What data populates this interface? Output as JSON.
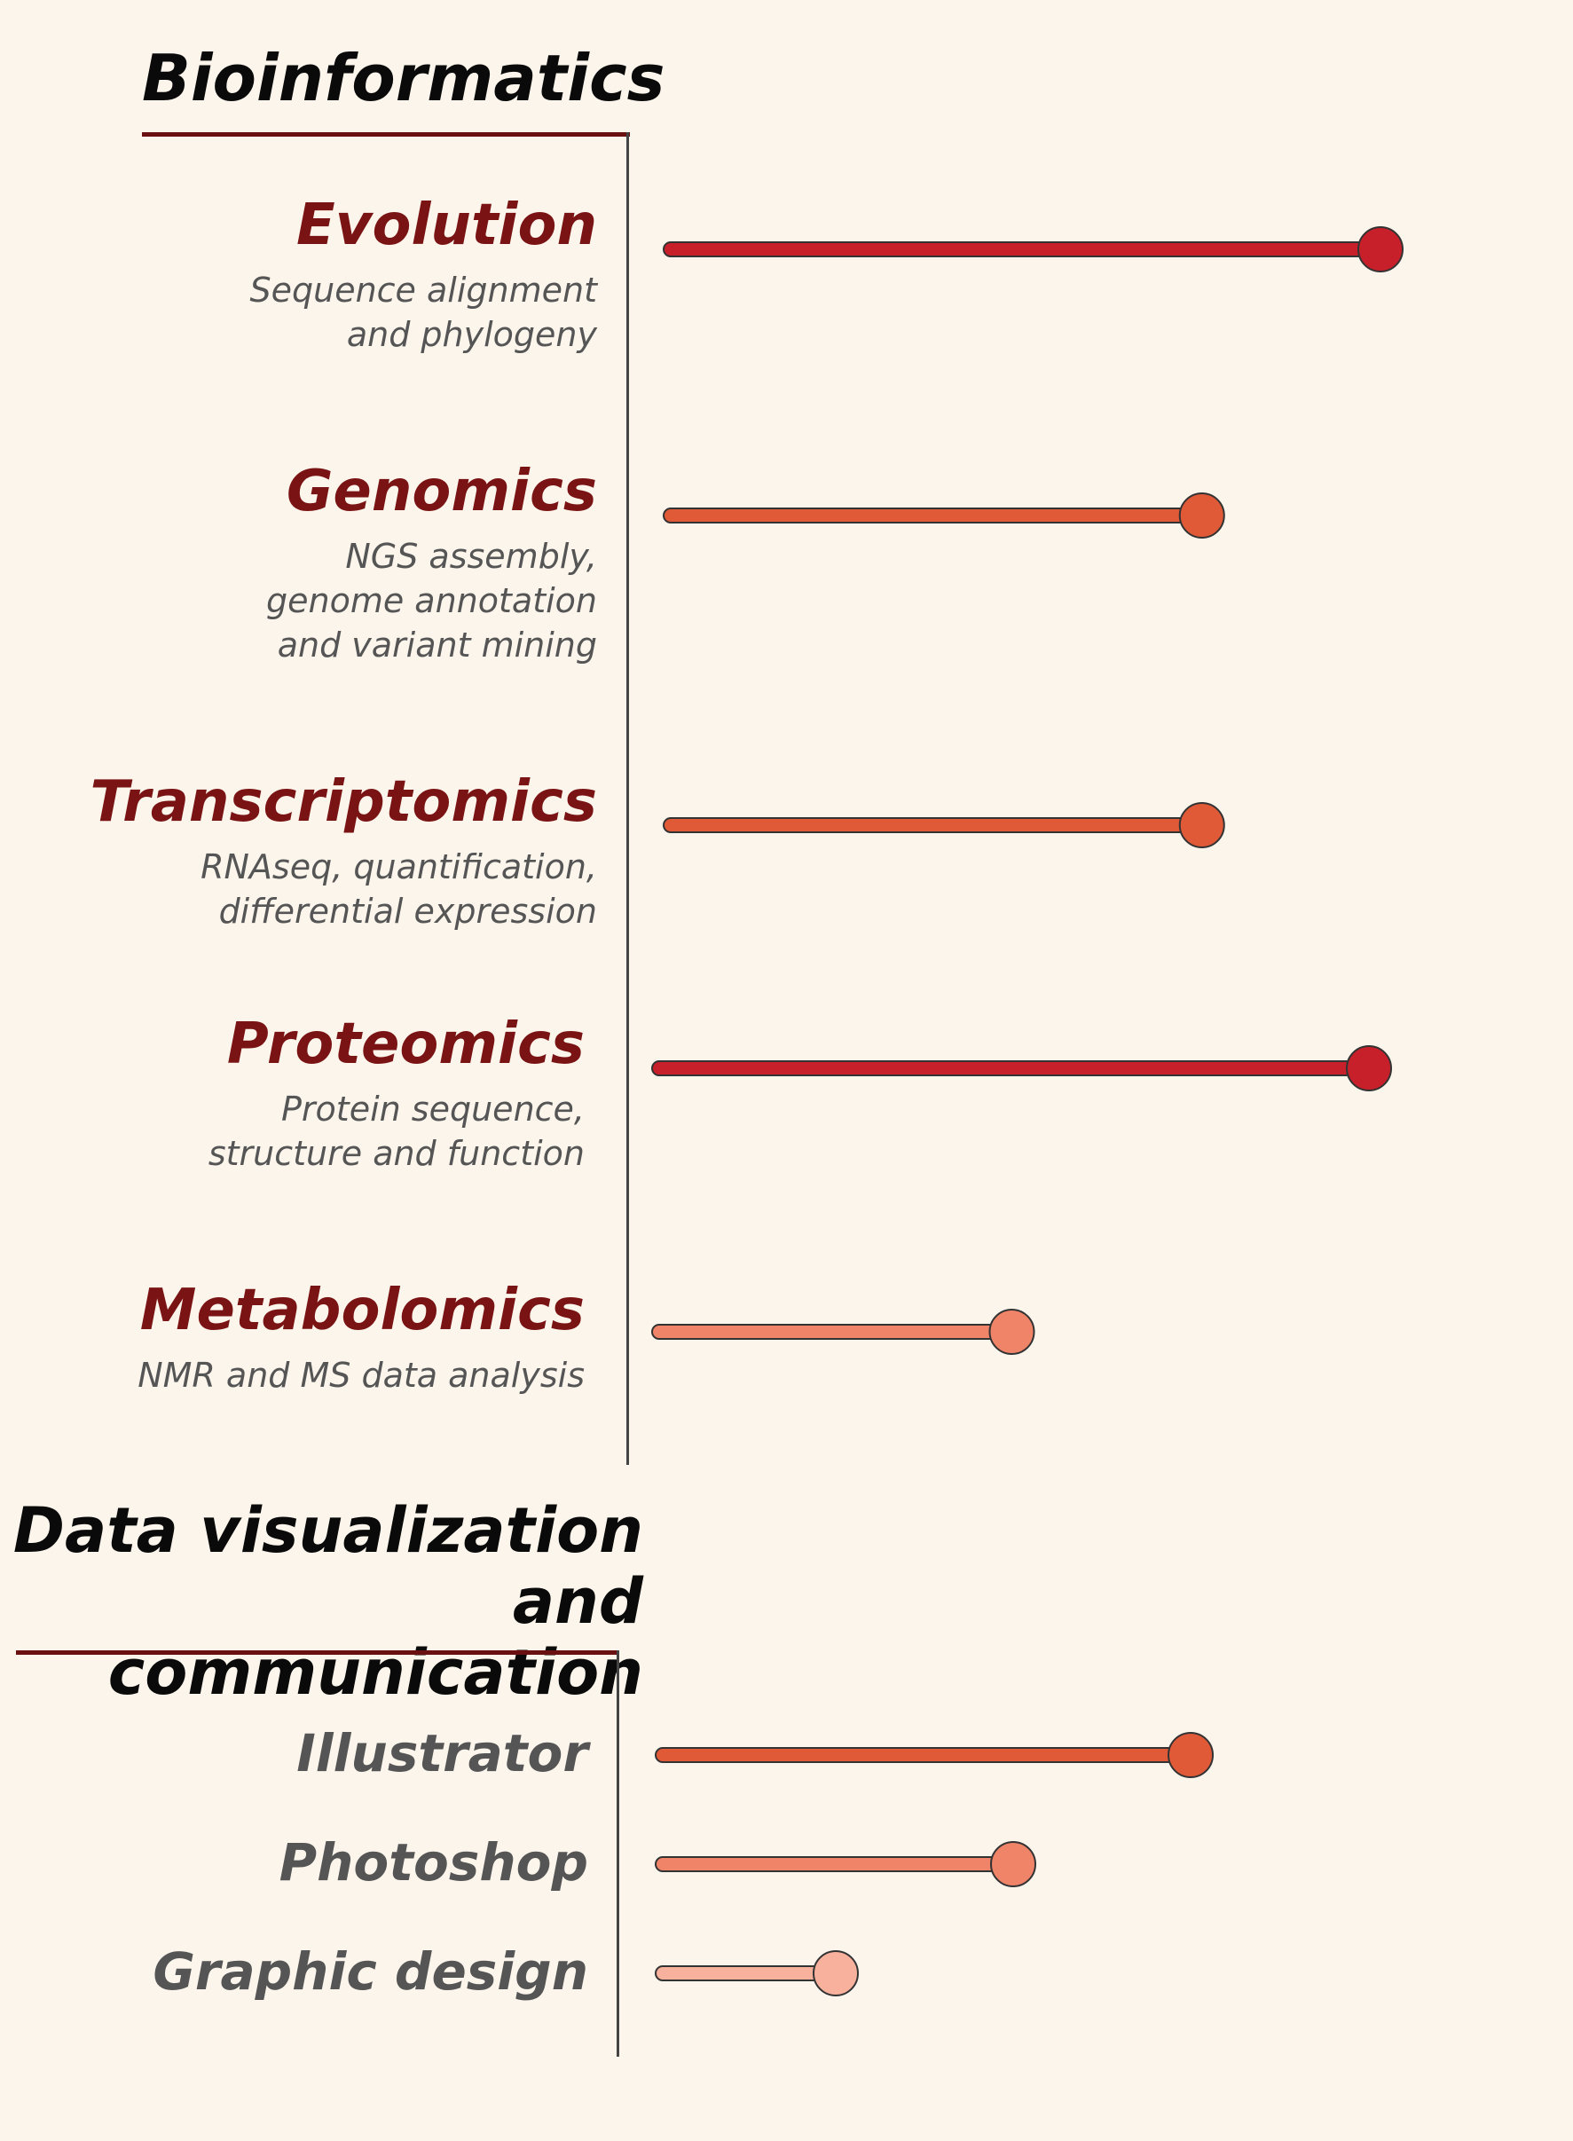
{
  "sections": [
    {
      "title": "Bioinformatics",
      "skills": [
        {
          "name": "Evolution",
          "description": "Sequence alignment\nand phylogeny",
          "level": 1.0,
          "color": "#c8202a"
        },
        {
          "name": "Genomics",
          "description": "NGS assembly,\ngenome annotation\nand variant mining",
          "level": 0.75,
          "color": "#e05a38"
        },
        {
          "name": "Transcriptomics",
          "description": "RNAseq, quantification,\ndifferential expression",
          "level": 0.75,
          "color": "#e05a38"
        },
        {
          "name": "Proteomics",
          "description": "Protein sequence,\nstructure and function",
          "level": 1.0,
          "color": "#c8202a"
        },
        {
          "name": "Metabolomics",
          "description": "NMR and MS data analysis",
          "level": 0.5,
          "color": "#ef8468"
        }
      ]
    },
    {
      "title": "Data visualization\nand communication",
      "skills": [
        {
          "name": "Illustrator",
          "level": 0.75,
          "color": "#e05a38"
        },
        {
          "name": "Photoshop",
          "level": 0.5,
          "color": "#ef8468"
        },
        {
          "name": "Graphic design",
          "level": 0.25,
          "color": "#f7b19c"
        }
      ]
    }
  ],
  "chart_data": {
    "type": "bar",
    "categories": [
      "Evolution",
      "Genomics",
      "Transcriptomics",
      "Proteomics",
      "Metabolomics",
      "Illustrator",
      "Photoshop",
      "Graphic design"
    ],
    "values": [
      1.0,
      0.75,
      0.75,
      1.0,
      0.5,
      0.75,
      0.5,
      0.25
    ],
    "colors": [
      "#c8202a",
      "#e05a38",
      "#e05a38",
      "#c8202a",
      "#ef8468",
      "#e05a38",
      "#ef8468",
      "#f7b19c"
    ],
    "grid": false
  }
}
